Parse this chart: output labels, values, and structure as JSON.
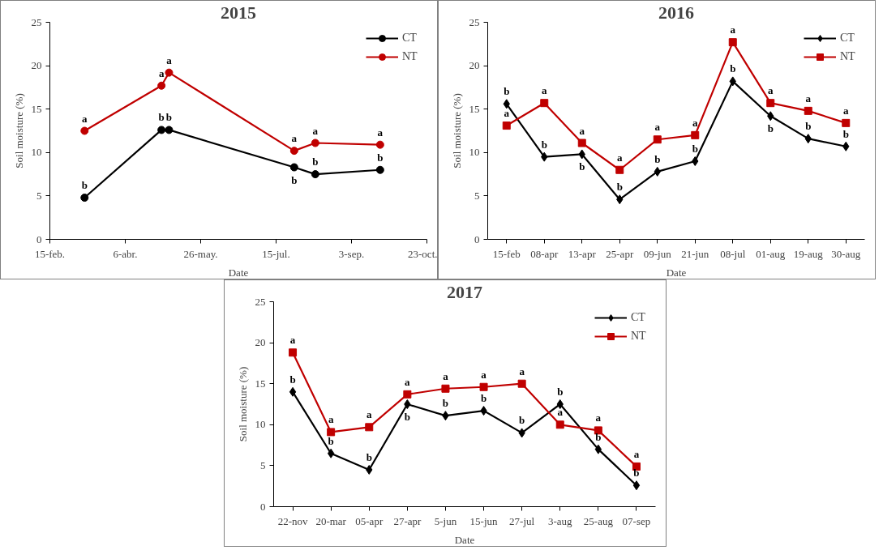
{
  "chart_data": [
    {
      "type": "line",
      "title": "2015",
      "xlabel": "Date",
      "ylabel": "Soil moisture (%)",
      "x": [
        "2015-03-10",
        "2015-04-30",
        "2015-05-05",
        "2015-07-27",
        "2015-08-10",
        "2015-09-22"
      ],
      "xlim": [
        "2015-02-15",
        "2015-10-23"
      ],
      "xticks": [
        {
          "value": "2015-02-15",
          "label": "15-feb."
        },
        {
          "value": "2015-04-06",
          "label": "6-abr."
        },
        {
          "value": "2015-05-26",
          "label": "26-may."
        },
        {
          "value": "2015-07-15",
          "label": "15-jul."
        },
        {
          "value": "2015-09-03",
          "label": "3-sep."
        },
        {
          "value": "2015-10-23",
          "label": "23-oct."
        }
      ],
      "ylim": [
        0,
        25
      ],
      "yticks": [
        0,
        5,
        10,
        15,
        20,
        25
      ],
      "grid": false,
      "legend": "top right",
      "series": [
        {
          "name": "CT",
          "color": "#000000",
          "marker": "circle",
          "values": [
            4.8,
            12.6,
            12.6,
            8.3,
            7.5,
            8.0
          ],
          "value_labels": [
            "b",
            "b",
            "b",
            "b",
            "b",
            "b"
          ]
        },
        {
          "name": "NT",
          "color": "#c00000",
          "marker": "circle",
          "values": [
            12.5,
            17.7,
            19.2,
            10.2,
            11.1,
            10.9
          ],
          "value_labels": [
            "a",
            "a",
            "a",
            "a",
            "a",
            "a"
          ]
        }
      ]
    },
    {
      "type": "line",
      "title": "2016",
      "xlabel": "Date",
      "ylabel": "Soil moisture (%)",
      "categories": [
        "15-feb",
        "08-apr",
        "13-apr",
        "25-apr",
        "09-jun",
        "21-jun",
        "08-jul",
        "01-aug",
        "19-aug",
        "30-aug"
      ],
      "ylim": [
        0,
        25
      ],
      "yticks": [
        0,
        5,
        10,
        15,
        20,
        25
      ],
      "grid": false,
      "legend": "top right",
      "series": [
        {
          "name": "CT",
          "color": "#000000",
          "marker": "diamond",
          "values": [
            15.6,
            9.5,
            9.8,
            4.6,
            7.8,
            9.0,
            18.2,
            14.2,
            11.6,
            10.7
          ],
          "value_labels": [
            "b",
            "b",
            "b",
            "b",
            "b",
            "b",
            "b",
            "b",
            "b",
            "b"
          ]
        },
        {
          "name": "NT",
          "color": "#c00000",
          "marker": "square",
          "values": [
            13.1,
            15.7,
            11.1,
            8.0,
            11.5,
            12.0,
            22.7,
            15.7,
            14.8,
            13.4
          ],
          "value_labels": [
            "a",
            "a",
            "a",
            "a",
            "a",
            "a",
            "a",
            "a",
            "a",
            "a"
          ]
        }
      ]
    },
    {
      "type": "line",
      "title": "2017",
      "xlabel": "Date",
      "ylabel": "Soil moisture (%)",
      "categories": [
        "22-nov",
        "20-mar",
        "05-apr",
        "27-apr",
        "5-jun",
        "15-jun",
        "27-jul",
        "3-aug",
        "25-aug",
        "07-sep"
      ],
      "ylim": [
        0,
        25
      ],
      "yticks": [
        0,
        5,
        10,
        15,
        20,
        25
      ],
      "grid": false,
      "legend": "top right",
      "series": [
        {
          "name": "CT",
          "color": "#000000",
          "marker": "diamond",
          "values": [
            14.0,
            6.5,
            4.5,
            12.5,
            11.1,
            11.7,
            9.0,
            12.5,
            7.0,
            2.6
          ],
          "value_labels": [
            "b",
            "b",
            "b",
            "b",
            "b",
            "b",
            "b",
            "b",
            "b",
            "b"
          ]
        },
        {
          "name": "NT",
          "color": "#c00000",
          "marker": "square",
          "values": [
            18.8,
            9.1,
            9.7,
            13.7,
            14.4,
            14.6,
            15.0,
            10.0,
            9.3,
            4.9
          ],
          "value_labels": [
            "a",
            "a",
            "a",
            "a",
            "a",
            "a",
            "a",
            "a",
            "a",
            "a"
          ]
        }
      ]
    }
  ]
}
